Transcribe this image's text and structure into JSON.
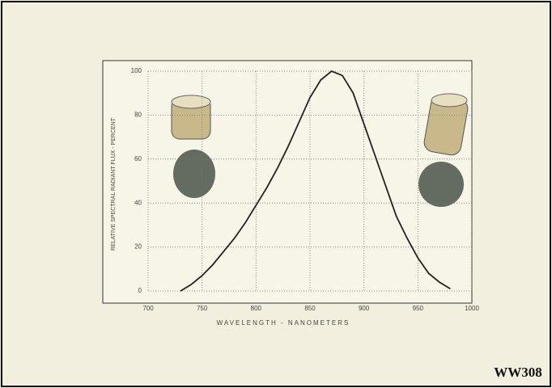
{
  "chart_data": {
    "type": "line",
    "x_label": "WAVELENGTH - NANOMETERS",
    "y_label": "RELATIVE SPECTRAL RADIANT FLUX - PERCENT",
    "code": "WW308",
    "x": [
      730,
      740,
      750,
      760,
      770,
      780,
      790,
      800,
      810,
      820,
      830,
      840,
      850,
      860,
      870,
      880,
      890,
      900,
      910,
      920,
      930,
      940,
      950,
      960,
      970,
      980
    ],
    "series": [
      {
        "color": "#222222",
        "values": [
          0,
          3,
          7,
          12,
          18,
          24,
          31,
          39,
          47,
          56,
          66,
          77,
          88,
          96,
          100,
          98,
          90,
          76,
          62,
          48,
          34,
          24,
          15,
          8,
          4,
          1
        ]
      }
    ],
    "xlim": [
      700,
      1000
    ],
    "xticks": [
      700,
      750,
      800,
      850,
      900,
      950,
      1000
    ],
    "ylim": [
      0,
      100
    ],
    "yticks": [
      0,
      20,
      40,
      60,
      80,
      100
    ],
    "grid": true
  }
}
